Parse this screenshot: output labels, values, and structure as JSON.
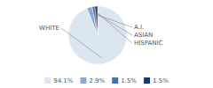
{
  "chart_data": {
    "type": "pie",
    "categories": [
      "WHITE",
      "A.I.",
      "ASIAN",
      "HISPANIC"
    ],
    "values": [
      94.1,
      2.9,
      1.5,
      1.5
    ],
    "value_labels": [
      "94.1%",
      "2.9%",
      "1.5%",
      "1.5%"
    ],
    "colors": [
      "#dce6f0",
      "#8faacc",
      "#4472a4",
      "#1f3864"
    ],
    "legend": "bottom"
  }
}
